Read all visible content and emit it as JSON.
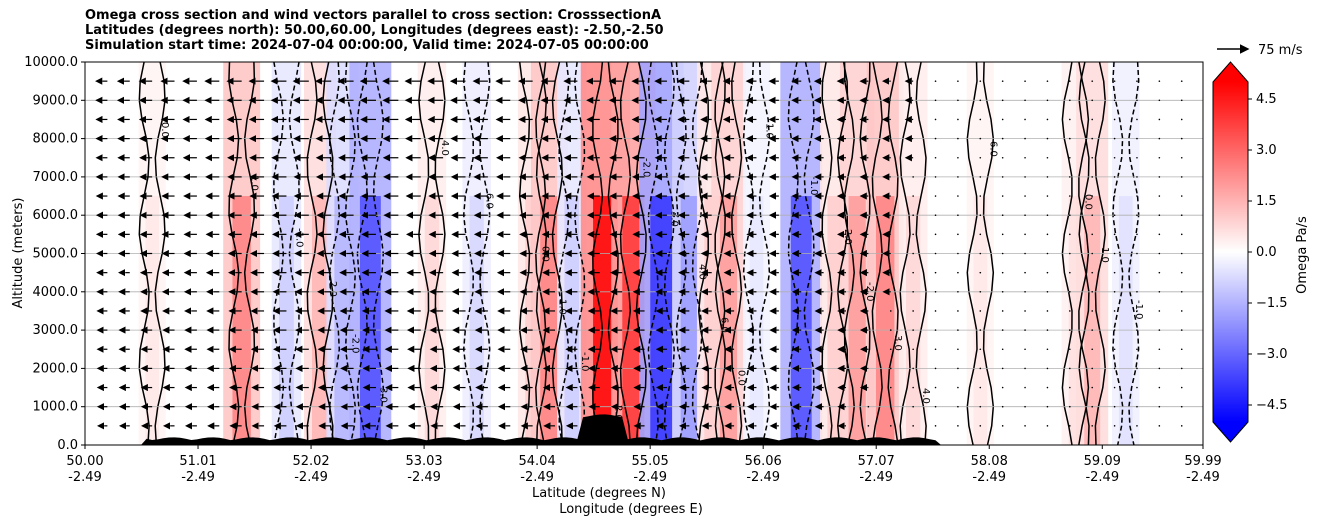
{
  "title_lines": [
    "Omega cross section and wind vectors parallel to cross section: CrosssectionA",
    "Latitudes (degrees north): 50.00,60.00, Longitudes (degrees east): -2.50,-2.50",
    "Simulation start time: 2024-07-04 00:00:00, Valid time: 2024-07-05 00:00:00"
  ],
  "chart_data": {
    "type": "heatmap",
    "subtype": "vertical cross section, filled omega contours with contour lines and wind vectors",
    "ylabel": "Altitude (meters)",
    "xlabel_lines": [
      "Latitude (degrees N)",
      "Longitude (degrees E)"
    ],
    "x_range": [
      50.0,
      59.99
    ],
    "ylim": [
      0,
      10000
    ],
    "yticks": [
      "0.0",
      "1000.0",
      "2000.0",
      "3000.0",
      "4000.0",
      "5000.0",
      "6000.0",
      "7000.0",
      "8000.0",
      "9000.0",
      "10000.0"
    ],
    "ytick_values": [
      0,
      1000,
      2000,
      3000,
      4000,
      5000,
      6000,
      7000,
      8000,
      9000,
      10000
    ],
    "xticks": [
      {
        "lat": "50.00",
        "lon": "-2.49",
        "value": 50.0
      },
      {
        "lat": "51.01",
        "lon": "-2.49",
        "value": 51.01
      },
      {
        "lat": "52.02",
        "lon": "-2.49",
        "value": 52.02
      },
      {
        "lat": "53.03",
        "lon": "-2.49",
        "value": 53.03
      },
      {
        "lat": "54.04",
        "lon": "-2.49",
        "value": 54.04
      },
      {
        "lat": "55.05",
        "lon": "-2.49",
        "value": 55.05
      },
      {
        "lat": "56.06",
        "lon": "-2.49",
        "value": 56.06
      },
      {
        "lat": "57.07",
        "lon": "-2.49",
        "value": 57.07
      },
      {
        "lat": "58.08",
        "lon": "-2.49",
        "value": 58.08
      },
      {
        "lat": "59.09",
        "lon": "-2.49",
        "value": 59.09
      },
      {
        "lat": "59.99",
        "lon": "-2.49",
        "value": 59.99
      }
    ],
    "grid": true,
    "colorbar": {
      "label": "Omega Pa/s",
      "range": [
        -5,
        5
      ],
      "ticks": [
        "4.5",
        "3.0",
        "1.5",
        "0.0",
        "−1.5",
        "−3.0",
        "−4.5"
      ],
      "tick_values": [
        4.5,
        3.0,
        1.5,
        0.0,
        -1.5,
        -3.0,
        -4.5
      ],
      "extend": "both"
    },
    "quiver_key": {
      "label": "75 m/s",
      "speed": 75
    },
    "contour_levels_labeled": [
      "0.0",
      "1.0",
      "-1.0",
      "2.0",
      "-2.0",
      "3.0",
      "4.0",
      "6.0"
    ],
    "omega_bands": [
      {
        "lat": 50.6,
        "omega": 0.5
      },
      {
        "lat": 51.4,
        "omega": 2.5
      },
      {
        "lat": 51.8,
        "omega": -1.0
      },
      {
        "lat": 52.1,
        "omega": 1.5
      },
      {
        "lat": 52.3,
        "omega": -1.5
      },
      {
        "lat": 52.55,
        "omega": -3.5
      },
      {
        "lat": 53.1,
        "omega": 0.8
      },
      {
        "lat": 53.5,
        "omega": -0.8
      },
      {
        "lat": 54.0,
        "omega": 1.0
      },
      {
        "lat": 54.15,
        "omega": 2.5
      },
      {
        "lat": 54.35,
        "omega": -1.0
      },
      {
        "lat": 54.65,
        "omega": 5.0
      },
      {
        "lat": 54.9,
        "omega": 4.0
      },
      {
        "lat": 55.15,
        "omega": -4.0
      },
      {
        "lat": 55.4,
        "omega": -2.0
      },
      {
        "lat": 55.6,
        "omega": 1.0
      },
      {
        "lat": 55.75,
        "omega": 2.0
      },
      {
        "lat": 56.0,
        "omega": -0.5
      },
      {
        "lat": 56.4,
        "omega": -3.5
      },
      {
        "lat": 56.7,
        "omega": 1.0
      },
      {
        "lat": 56.9,
        "omega": 2.0
      },
      {
        "lat": 57.15,
        "omega": 2.5
      },
      {
        "lat": 57.4,
        "omega": 0.8
      },
      {
        "lat": 58.0,
        "omega": 0.5
      },
      {
        "lat": 58.85,
        "omega": 0.6
      },
      {
        "lat": 59.0,
        "omega": 1.5
      },
      {
        "lat": 59.3,
        "omega": -0.6
      }
    ],
    "wind_u_profile": [
      {
        "lat": 50.0,
        "u": -15
      },
      {
        "lat": 51.0,
        "u": -25
      },
      {
        "lat": 52.0,
        "u": -30
      },
      {
        "lat": 53.0,
        "u": -30
      },
      {
        "lat": 54.0,
        "u": -25
      },
      {
        "lat": 55.0,
        "u": -20
      },
      {
        "lat": 56.0,
        "u": -12
      },
      {
        "lat": 57.0,
        "u": -6
      },
      {
        "lat": 58.0,
        "u": -2
      },
      {
        "lat": 59.99,
        "u": 0
      }
    ]
  },
  "colors": {
    "positive": "#ff0000",
    "negative": "#0000ff",
    "neutral": "#ffffff",
    "terrain": "#000000",
    "grid": "#b0b0b0"
  }
}
